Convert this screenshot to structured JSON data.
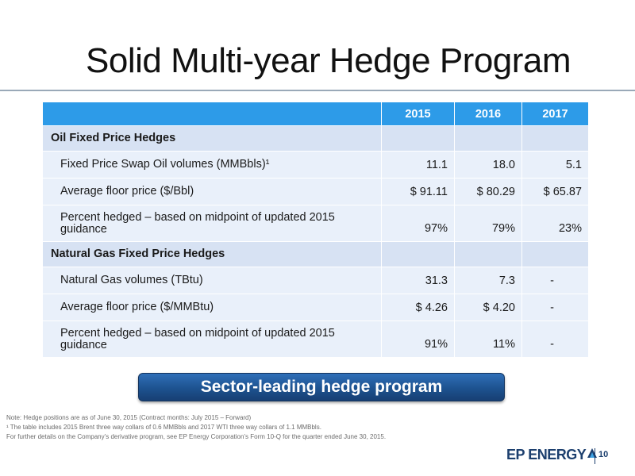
{
  "title": "Solid Multi-year Hedge Program",
  "table": {
    "columns": [
      "2015",
      "2016",
      "2017"
    ],
    "sections": [
      {
        "heading": "Oil Fixed Price Hedges",
        "rows": [
          {
            "label": "Fixed Price Swap Oil volumes (MMBbls)¹",
            "values": [
              "11.1",
              "18.0",
              "5.1"
            ]
          },
          {
            "label": "Average floor price ($/Bbl)",
            "values": [
              "$ 91.11",
              "$ 80.29",
              "$ 65.87"
            ]
          },
          {
            "label": "Percent hedged – based on midpoint of updated 2015 guidance",
            "values": [
              "97%",
              "79%",
              "23%"
            ]
          }
        ]
      },
      {
        "heading": "Natural Gas Fixed Price Hedges",
        "rows": [
          {
            "label": "Natural Gas volumes (TBtu)",
            "values": [
              "31.3",
              "7.3",
              "-"
            ]
          },
          {
            "label": "Average floor price ($/MMBtu)",
            "values": [
              "$ 4.26",
              "$ 4.20",
              "-"
            ]
          },
          {
            "label": "Percent hedged – based on midpoint of updated 2015 guidance",
            "values": [
              "91%",
              "11%",
              "-"
            ]
          }
        ]
      }
    ]
  },
  "callout": "Sector-leading hedge program",
  "notes": [
    "Note:  Hedge positions are as of June 30, 2015 (Contract months: July 2015 – Forward)",
    "¹ The table includes 2015 Brent three way collars of 0.6 MMBbls and 2017 WTI three way collars of 1.1 MMBbls.",
    "For further details on the Company’s derivative program, see EP Energy Corporation’s Form 10-Q for the quarter ended June 30, 2015."
  ],
  "brand": "EP ENERGY",
  "page_number": "10",
  "colors": {
    "header_blue": "#2d9be8",
    "row_light": "#e9f0fa",
    "row_section": "#d7e2f3",
    "button_blue": "#1d528f",
    "brand_navy": "#1c3f6e"
  }
}
